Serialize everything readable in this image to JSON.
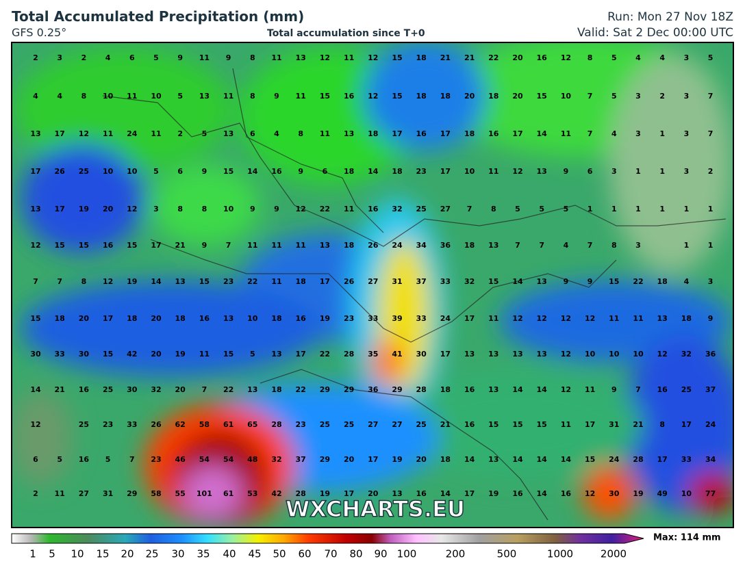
{
  "header": {
    "title": "Total Accumulated Precipitation (mm)",
    "model": "GFS 0.25°",
    "subtitle": "Total accumulation since T+0",
    "run": "Run: Mon 27 Nov 18Z",
    "valid": "Valid: Sat 2 Dec 00:00 UTC"
  },
  "grid": {
    "rows": [
      [
        2,
        3,
        2,
        4,
        6,
        5,
        9,
        11,
        9,
        8,
        11,
        13,
        12,
        11,
        12,
        15,
        18,
        21,
        21,
        22,
        20,
        16,
        12,
        8,
        5,
        4,
        4,
        3,
        5
      ],
      [
        4,
        4,
        8,
        10,
        11,
        10,
        5,
        13,
        11,
        8,
        9,
        11,
        15,
        16,
        12,
        15,
        18,
        18,
        20,
        18,
        20,
        15,
        10,
        7,
        5,
        3,
        2,
        3,
        7
      ],
      [
        13,
        17,
        12,
        11,
        24,
        11,
        2,
        5,
        13,
        6,
        4,
        8,
        11,
        13,
        18,
        17,
        16,
        17,
        18,
        16,
        17,
        14,
        11,
        7,
        4,
        3,
        1,
        3,
        7
      ],
      [
        17,
        26,
        25,
        10,
        10,
        5,
        6,
        9,
        15,
        14,
        16,
        9,
        6,
        18,
        14,
        18,
        23,
        17,
        10,
        11,
        12,
        13,
        9,
        6,
        3,
        1,
        1,
        3,
        2
      ],
      [
        13,
        17,
        19,
        20,
        12,
        3,
        8,
        8,
        10,
        9,
        9,
        12,
        22,
        11,
        16,
        32,
        25,
        27,
        7,
        8,
        5,
        5,
        5,
        1,
        1,
        1,
        1,
        1,
        1
      ],
      [
        12,
        15,
        15,
        16,
        15,
        17,
        21,
        9,
        7,
        11,
        11,
        11,
        13,
        18,
        26,
        24,
        34,
        36,
        18,
        13,
        7,
        7,
        4,
        7,
        8,
        3,
        null,
        1,
        1
      ],
      [
        7,
        7,
        8,
        12,
        19,
        14,
        13,
        15,
        23,
        22,
        11,
        18,
        17,
        26,
        27,
        31,
        37,
        33,
        32,
        15,
        14,
        13,
        9,
        9,
        15,
        22,
        18,
        4,
        3
      ],
      [
        15,
        18,
        20,
        17,
        18,
        20,
        18,
        16,
        13,
        10,
        18,
        16,
        19,
        23,
        33,
        39,
        33,
        24,
        17,
        11,
        12,
        12,
        12,
        12,
        11,
        11,
        13,
        18,
        9
      ],
      [
        30,
        33,
        30,
        15,
        42,
        20,
        19,
        11,
        15,
        5,
        13,
        17,
        22,
        28,
        35,
        41,
        30,
        17,
        13,
        13,
        13,
        13,
        12,
        10,
        10,
        10,
        12,
        32,
        36
      ],
      [
        14,
        21,
        16,
        25,
        30,
        32,
        20,
        7,
        22,
        13,
        18,
        22,
        29,
        29,
        36,
        29,
        28,
        18,
        16,
        13,
        14,
        14,
        12,
        11,
        9,
        7,
        16,
        25,
        37
      ],
      [
        12,
        null,
        25,
        23,
        33,
        26,
        62,
        58,
        61,
        65,
        28,
        23,
        25,
        25,
        27,
        27,
        25,
        21,
        16,
        15,
        15,
        15,
        11,
        17,
        31,
        21,
        8,
        17,
        24
      ],
      [
        6,
        5,
        16,
        5,
        7,
        23,
        46,
        54,
        54,
        48,
        32,
        37,
        29,
        20,
        17,
        19,
        20,
        18,
        14,
        13,
        14,
        14,
        14,
        15,
        24,
        28,
        17,
        33,
        34
      ],
      [
        2,
        11,
        27,
        31,
        29,
        58,
        55,
        101,
        61,
        53,
        42,
        28,
        19,
        17,
        20,
        13,
        16,
        14,
        17,
        19,
        16,
        14,
        16,
        12,
        30,
        19,
        49,
        10,
        77
      ]
    ]
  },
  "legend": {
    "labels": [
      1,
      5,
      10,
      15,
      20,
      25,
      30,
      35,
      40,
      45,
      50,
      60,
      70,
      80,
      90,
      100,
      200,
      500,
      1000,
      2000
    ],
    "max": "Max: 114 mm"
  },
  "watermark": "WXCHARTS.EU"
}
